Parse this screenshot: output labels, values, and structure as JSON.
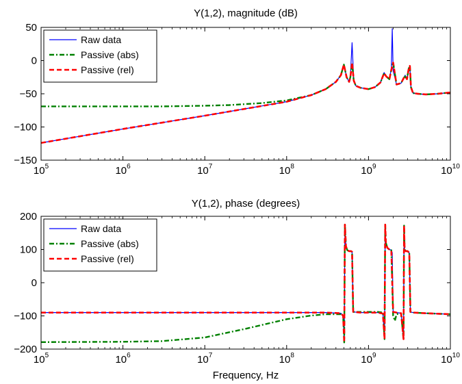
{
  "chart_data": [
    {
      "type": "line",
      "title": "Y(1,2), magnitude (dB)",
      "xlabel": "",
      "ylabel": "",
      "xscale": "log",
      "xlim": [
        100000,
        10000000000
      ],
      "ylim": [
        -150,
        50
      ],
      "yticks": [
        50,
        0,
        -50,
        -100,
        -150
      ],
      "ytick_labels": [
        "50",
        "0",
        "−50",
        "−100",
        "−150"
      ],
      "xticks": [
        100000,
        1000000,
        10000000,
        100000000,
        1000000000,
        10000000000
      ],
      "xtick_bases": [
        "10",
        "10",
        "10",
        "10",
        "10",
        "10"
      ],
      "xtick_exps": [
        "5",
        "6",
        "7",
        "8",
        "9",
        "10"
      ],
      "grid": false,
      "legend_position": "top-left",
      "series": [
        {
          "name": "Raw data",
          "color": "#0000ff",
          "style": "solid",
          "x": [
            100000.0,
            1000000.0,
            10000000.0,
            100000000.0,
            200000000.0,
            300000000.0,
            400000000.0,
            460000000.0,
            500000000.0,
            540000000.0,
            580000000.0,
            600000000.0,
            630000000.0,
            660000000.0,
            700000000.0,
            800000000.0,
            1000000000.0,
            1200000000.0,
            1400000000.0,
            1550000000.0,
            1650000000.0,
            1800000000.0,
            1900000000.0,
            1950000000.0,
            2000000000.0,
            2200000000.0,
            2500000000.0,
            2700000000.0,
            2800000000.0,
            2950000000.0,
            3100000000.0,
            3200000000.0,
            3300000000.0,
            3500000000.0,
            4000000000.0,
            5000000000.0,
            7000000000.0,
            10000000000.0
          ],
          "y": [
            -124,
            -103,
            -83,
            -62,
            -52,
            -43,
            -32,
            -22,
            -6,
            -25,
            -32,
            -25,
            27,
            -30,
            -38,
            -41,
            -43,
            -40,
            -33,
            -18,
            -24,
            -28,
            -12,
            48,
            -15,
            -36,
            -34,
            -26,
            -22,
            -28,
            -12,
            -8,
            -40,
            -49,
            -50,
            -51,
            -50,
            -48
          ]
        },
        {
          "name": "Passive (abs)",
          "color": "#008000",
          "style": "dashdot",
          "x": [
            100000.0,
            1000000.0,
            3000000.0,
            10000000.0,
            20000000.0,
            50000000.0,
            100000000.0,
            200000000.0,
            300000000.0,
            400000000.0,
            460000000.0,
            500000000.0,
            540000000.0,
            580000000.0,
            600000000.0,
            630000000.0,
            660000000.0,
            700000000.0,
            800000000.0,
            1000000000.0,
            1200000000.0,
            1400000000.0,
            1550000000.0,
            1650000000.0,
            1800000000.0,
            1900000000.0,
            2000000000.0,
            2200000000.0,
            2500000000.0,
            2700000000.0,
            2800000000.0,
            2950000000.0,
            3100000000.0,
            3200000000.0,
            3300000000.0,
            3500000000.0,
            4000000000.0,
            5000000000.0,
            7000000000.0,
            10000000000.0
          ],
          "y": [
            -69,
            -69,
            -69,
            -68,
            -67,
            -64,
            -60,
            -52,
            -43,
            -32,
            -22,
            -6,
            -25,
            -32,
            -25,
            -4,
            -30,
            -38,
            -41,
            -43,
            -40,
            -33,
            -19,
            -24,
            -28,
            -14,
            -3,
            -36,
            -34,
            -26,
            -24,
            -28,
            -12,
            -8,
            -40,
            -49,
            -50,
            -51,
            -50,
            -48
          ]
        },
        {
          "name": "Passive (rel)",
          "color": "#ff0000",
          "style": "dashed",
          "x": [
            100000.0,
            1000000.0,
            10000000.0,
            100000000.0,
            200000000.0,
            300000000.0,
            400000000.0,
            460000000.0,
            500000000.0,
            540000000.0,
            580000000.0,
            600000000.0,
            630000000.0,
            660000000.0,
            700000000.0,
            800000000.0,
            1000000000.0,
            1200000000.0,
            1400000000.0,
            1550000000.0,
            1650000000.0,
            1800000000.0,
            1900000000.0,
            2000000000.0,
            2200000000.0,
            2500000000.0,
            2700000000.0,
            2800000000.0,
            2950000000.0,
            3100000000.0,
            3200000000.0,
            3300000000.0,
            3500000000.0,
            4000000000.0,
            5000000000.0,
            7000000000.0,
            10000000000.0
          ],
          "y": [
            -124,
            -103,
            -83,
            -62,
            -52,
            -43,
            -32,
            -22,
            -6,
            -25,
            -32,
            -25,
            -3,
            -30,
            -38,
            -41,
            -43,
            -40,
            -33,
            -19,
            -24,
            -28,
            -14,
            -3,
            -36,
            -34,
            -26,
            -24,
            -28,
            -12,
            -8,
            -40,
            -49,
            -50,
            -51,
            -50,
            -48
          ]
        }
      ]
    },
    {
      "type": "line",
      "title": "Y(1,2), phase (degrees)",
      "xlabel": "Frequency, Hz",
      "ylabel": "",
      "xscale": "log",
      "xlim": [
        100000,
        10000000000
      ],
      "ylim": [
        -200,
        200
      ],
      "yticks": [
        200,
        100,
        0,
        -100,
        -200
      ],
      "ytick_labels": [
        "200",
        "100",
        "0",
        "−100",
        "−200"
      ],
      "xticks": [
        100000,
        1000000,
        10000000,
        100000000,
        1000000000,
        10000000000
      ],
      "xtick_bases": [
        "10",
        "10",
        "10",
        "10",
        "10",
        "10"
      ],
      "xtick_exps": [
        "5",
        "6",
        "7",
        "8",
        "9",
        "10"
      ],
      "grid": false,
      "legend_position": "top-left",
      "series": [
        {
          "name": "Raw data",
          "color": "#0000ff",
          "style": "solid",
          "x": [
            100000.0,
            10000000.0,
            100000000.0,
            300000000.0,
            460000000.0,
            490000000.0,
            505000000.0,
            515000000.0,
            530000000.0,
            550000000.0,
            580000000.0,
            610000000.0,
            630000000.0,
            650000000.0,
            800000000.0,
            1000000000.0,
            1300000000.0,
            1500000000.0,
            1570000000.0,
            1600000000.0,
            1630000000.0,
            1700000000.0,
            1800000000.0,
            1900000000.0,
            1950000000.0,
            2000000000.0,
            2200000000.0,
            2500000000.0,
            2680000000.0,
            2720000000.0,
            2760000000.0,
            2850000000.0,
            3000000000.0,
            3150000000.0,
            3250000000.0,
            3500000000.0,
            5000000000.0,
            10000000000.0
          ],
          "y": [
            -90,
            -90,
            -90,
            -90,
            -92,
            -100,
            -180,
            175,
            110,
            98,
            95,
            95,
            93,
            -88,
            -90,
            -90,
            -90,
            -93,
            -170,
            175,
            120,
            105,
            100,
            98,
            90,
            -88,
            -90,
            -92,
            -170,
            172,
            100,
            95,
            95,
            90,
            -88,
            -90,
            -92,
            -95
          ]
        },
        {
          "name": "Passive (abs)",
          "color": "#008000",
          "style": "dashdot",
          "x": [
            100000.0,
            1000000.0,
            3000000.0,
            10000000.0,
            30000000.0,
            100000000.0,
            200000000.0,
            300000000.0,
            460000000.0,
            490000000.0,
            505000000.0,
            515000000.0,
            530000000.0,
            550000000.0,
            580000000.0,
            610000000.0,
            630000000.0,
            650000000.0,
            800000000.0,
            1000000000.0,
            1300000000.0,
            1500000000.0,
            1570000000.0,
            1600000000.0,
            1630000000.0,
            1700000000.0,
            1800000000.0,
            1900000000.0,
            2000000000.0,
            2100000000.0,
            2200000000.0,
            2500000000.0,
            2680000000.0,
            2720000000.0,
            2760000000.0,
            2850000000.0,
            3000000000.0,
            3150000000.0,
            3250000000.0,
            3500000000.0,
            5000000000.0,
            10000000000.0
          ],
          "y": [
            -179,
            -178,
            -176,
            -165,
            -140,
            -110,
            -99,
            -95,
            -95,
            -100,
            -180,
            175,
            110,
            98,
            95,
            95,
            93,
            -88,
            -88,
            -88,
            -88,
            -90,
            -170,
            175,
            120,
            105,
            100,
            98,
            -100,
            -115,
            -95,
            -92,
            -170,
            172,
            100,
            95,
            95,
            90,
            -88,
            -90,
            -92,
            -95
          ]
        },
        {
          "name": "Passive (rel)",
          "color": "#ff0000",
          "style": "dashed",
          "x": [
            100000.0,
            10000000.0,
            100000000.0,
            300000000.0,
            460000000.0,
            490000000.0,
            505000000.0,
            515000000.0,
            530000000.0,
            550000000.0,
            580000000.0,
            610000000.0,
            630000000.0,
            650000000.0,
            800000000.0,
            1000000000.0,
            1300000000.0,
            1500000000.0,
            1570000000.0,
            1600000000.0,
            1630000000.0,
            1700000000.0,
            1800000000.0,
            1900000000.0,
            2000000000.0,
            2200000000.0,
            2500000000.0,
            2680000000.0,
            2720000000.0,
            2760000000.0,
            2850000000.0,
            3000000000.0,
            3150000000.0,
            3250000000.0,
            3500000000.0,
            5000000000.0,
            10000000000.0
          ],
          "y": [
            -90,
            -90,
            -90,
            -90,
            -92,
            -100,
            -180,
            175,
            110,
            98,
            95,
            95,
            93,
            -88,
            -90,
            -90,
            -90,
            -93,
            -170,
            175,
            120,
            105,
            100,
            98,
            -88,
            -90,
            -92,
            -170,
            172,
            100,
            95,
            95,
            90,
            -88,
            -90,
            -92,
            -95
          ]
        }
      ]
    }
  ]
}
